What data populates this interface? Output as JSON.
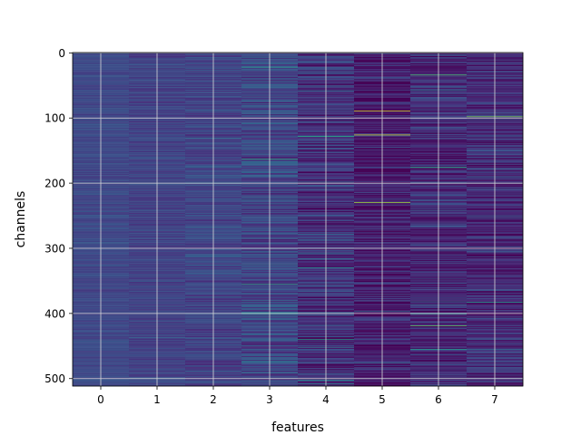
{
  "chart_data": {
    "type": "heatmap",
    "title": "",
    "xlabel": "features",
    "ylabel": "channels",
    "x_categories": [
      0,
      1,
      2,
      3,
      4,
      5,
      6,
      7
    ],
    "x_tick_labels": [
      "0",
      "1",
      "2",
      "3",
      "4",
      "5",
      "6",
      "7"
    ],
    "y_tick_values": [
      0,
      100,
      200,
      300,
      400,
      500
    ],
    "y_tick_labels": [
      "0",
      "100",
      "200",
      "300",
      "400",
      "500"
    ],
    "y_range": [
      0,
      511
    ],
    "y_inverted": true,
    "n_channels": 512,
    "grid": true,
    "colormap": "viridis",
    "colors": {
      "grid": "#d8d8d8",
      "axes_edge": "#000000",
      "background": "#ffffff"
    },
    "column_stats": [
      {
        "feature": 0,
        "mean": 0.22,
        "spread": 0.05
      },
      {
        "feature": 1,
        "mean": 0.2,
        "spread": 0.06
      },
      {
        "feature": 2,
        "mean": 0.2,
        "spread": 0.08
      },
      {
        "feature": 3,
        "mean": 0.21,
        "spread": 0.13
      },
      {
        "feature": 4,
        "mean": 0.14,
        "spread": 0.15
      },
      {
        "feature": 5,
        "mean": 0.08,
        "spread": 0.13
      },
      {
        "feature": 6,
        "mean": 0.12,
        "spread": 0.15
      },
      {
        "feature": 7,
        "mean": 0.12,
        "spread": 0.14
      }
    ],
    "highlights": [
      {
        "feature": 5,
        "channel": 89,
        "value": 0.96
      },
      {
        "feature": 5,
        "channel": 126,
        "value": 0.93
      },
      {
        "feature": 5,
        "channel": 230,
        "value": 0.88
      },
      {
        "feature": 7,
        "channel": 98,
        "value": 0.8
      },
      {
        "feature": 6,
        "channel": 34,
        "value": 0.72
      },
      {
        "feature": 6,
        "channel": 419,
        "value": 0.75
      },
      {
        "feature": 6,
        "channel": 176,
        "value": 0.65
      },
      {
        "feature": 4,
        "channel": 128,
        "value": 0.62
      },
      {
        "feature": 4,
        "channel": 440,
        "value": 0.55
      },
      {
        "feature": 6,
        "channel": 455,
        "value": 0.55
      },
      {
        "feature": 3,
        "channel": 163,
        "value": 0.6
      },
      {
        "feature": 3,
        "channel": 355,
        "value": 0.58
      },
      {
        "feature": 7,
        "channel": 383,
        "value": 0.55
      },
      {
        "feature": 3,
        "channel": 22,
        "value": 0.55
      },
      {
        "feature": 4,
        "channel": 330,
        "value": 0.5
      }
    ]
  }
}
